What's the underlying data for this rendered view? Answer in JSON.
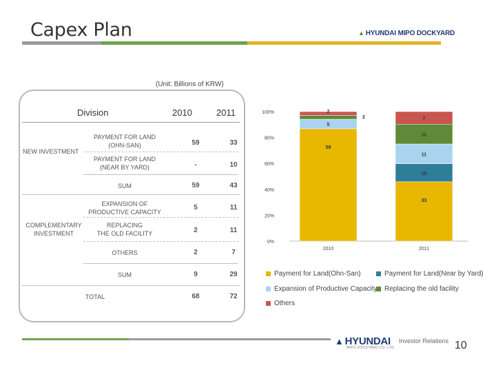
{
  "header": {
    "title": "Capex Plan",
    "logo_text": "HYUNDAI MIPO DOCKYARD"
  },
  "table": {
    "unit": "(Unit: Billions of KRW)",
    "col_division": "Division",
    "col_2010": "2010",
    "col_2011": "2011",
    "group_new": "NEW INVESTMENT",
    "group_comp_line1": "COMPLEMENTARY",
    "group_comp_line2": "INVESTMENT",
    "rows": [
      {
        "label1": "PAYMENT FOR LAND",
        "label2": "(OHN-SAN)",
        "v2010": "59",
        "v2011": "33"
      },
      {
        "label1": "PAYMENT FOR LAND",
        "label2": "(NEAR BY YARD)",
        "v2010": "-",
        "v2011": "10"
      },
      {
        "label1": "SUM",
        "label2": "",
        "v2010": "59",
        "v2011": "43"
      },
      {
        "label1": "EXPANSION OF",
        "label2": "PRODUCTIVE CAPACITY",
        "v2010": "5",
        "v2011": "11"
      },
      {
        "label1": "REPLACING",
        "label2": "THE OLD FACILITY",
        "v2010": "2",
        "v2011": "11"
      },
      {
        "label1": "OTHERS",
        "label2": "",
        "v2010": "2",
        "v2011": "7"
      },
      {
        "label1": "SUM",
        "label2": "",
        "v2010": "9",
        "v2011": "29"
      },
      {
        "label1": "TOTAL",
        "label2": "",
        "v2010": "68",
        "v2011": "72"
      }
    ]
  },
  "chart_data": {
    "type": "bar",
    "stacked": true,
    "normalized": true,
    "categories": [
      "2010",
      "2011"
    ],
    "yticks": [
      "0%",
      "20%",
      "40%",
      "60%",
      "80%",
      "100%"
    ],
    "series": [
      {
        "name": "Payment for Land(Ohn-San)",
        "values": [
          59,
          33
        ],
        "color": "#e8b800"
      },
      {
        "name": "Payment for Land(Near by Yard)",
        "values": [
          0,
          10
        ],
        "color": "#2e7e9a"
      },
      {
        "name": "Expansion of Productive Capacity",
        "values": [
          5,
          11
        ],
        "color": "#a9d3ef"
      },
      {
        "name": "Replacing the old facility",
        "values": [
          2,
          11
        ],
        "color": "#5f8a37"
      },
      {
        "name": "Others",
        "values": [
          2,
          7
        ],
        "color": "#c8564f"
      }
    ],
    "data_labels": [
      {
        "category": "2010",
        "series": "Payment for Land(Ohn-San)",
        "text": "59"
      },
      {
        "category": "2010",
        "series": "Expansion of Productive Capacity",
        "text": "5"
      },
      {
        "category": "2010",
        "series": "Replacing the old facility",
        "text": "2"
      },
      {
        "category": "2010",
        "series": "Others",
        "text": "2"
      },
      {
        "category": "2011",
        "series": "Payment for Land(Ohn-San)",
        "text": "33"
      },
      {
        "category": "2011",
        "series": "Payment for Land(Near by Yard)",
        "text": "10"
      },
      {
        "category": "2011",
        "series": "Expansion of Productive Capacity",
        "text": "11"
      },
      {
        "category": "2011",
        "series": "Replacing the old facility",
        "text": "11"
      },
      {
        "category": "2011",
        "series": "Others",
        "text": "7"
      }
    ],
    "legend_position": "bottom"
  },
  "footer": {
    "logo_text": "HYUNDAI",
    "logo_sub": "MIPO DOCKYARD CO.,LTD.",
    "ir_text": "Investor Relations",
    "page_number": "10"
  }
}
